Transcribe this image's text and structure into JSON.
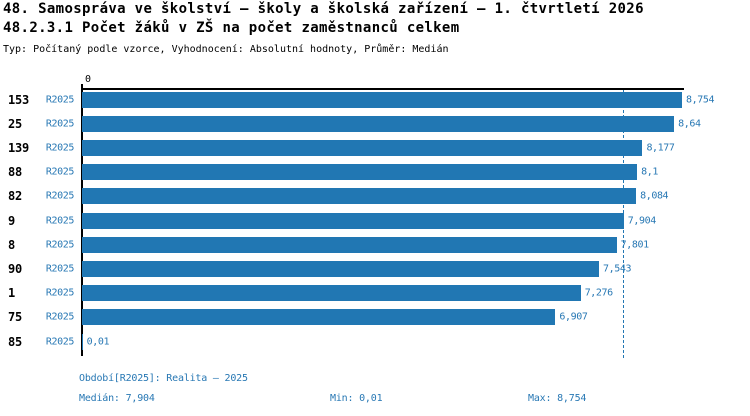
{
  "header": {
    "title": "48. Samospráva ve školství – školy a školská zařízení – 1. čtvrtletí 2026",
    "subtitle": "48.2.3.1 Počet žáků v ZŠ na počet zaměstnanců celkem",
    "meta": "Typ: Počítaný podle vzorce, Vyhodnocení: Absolutní hodnoty, Průměr: Medián"
  },
  "chart_data": {
    "type": "bar",
    "orientation": "horizontal",
    "categories": [
      "153",
      "25",
      "139",
      "88",
      "82",
      "9",
      "8",
      "90",
      "1",
      "75",
      "85"
    ],
    "series_label": "R2025",
    "values": [
      8.754,
      8.64,
      8.177,
      8.1,
      8.084,
      7.904,
      7.801,
      7.543,
      7.276,
      6.907,
      0.01
    ],
    "value_labels": [
      "8,754",
      "8,64",
      "8,177",
      "8,1",
      "8,084",
      "7,904",
      "7,801",
      "7,543",
      "7,276",
      "6,907",
      "0,01"
    ],
    "zero_tick_label": "0",
    "xlim": [
      0,
      8.754
    ],
    "median": 7.904,
    "grid": false,
    "legend_position": "none",
    "bar_color": "#2177b3",
    "median_line_color": "#2177b3",
    "label_color": "#2878b4"
  },
  "footer": {
    "period": "Období[R2025]: Realita – 2025",
    "median": "Medián: 7,904",
    "min": "Min: 0,01",
    "max": "Max: 8,754"
  }
}
